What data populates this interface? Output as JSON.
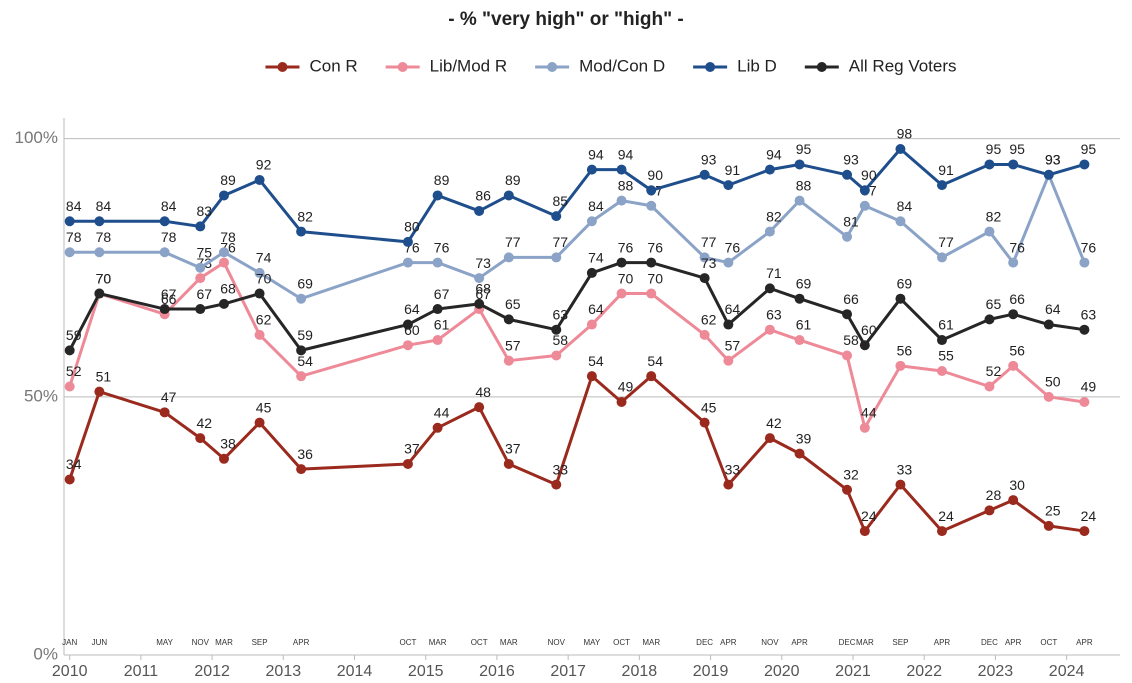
{
  "chart_data": {
    "type": "line",
    "title": "- % \"very high\" or \"high\" -",
    "x": [
      "2010-01",
      "2010-06",
      "2011-05",
      "2011-11",
      "2012-03",
      "2012-09",
      "2013-04",
      "2014-10",
      "2015-03",
      "2015-10",
      "2016-03",
      "2016-11",
      "2017-05",
      "2017-10",
      "2018-03",
      "2018-12",
      "2019-04",
      "2019-11",
      "2020-04",
      "2020-12",
      "2021-03",
      "2021-09",
      "2022-04",
      "2022-12",
      "2023-04",
      "2023-10",
      "2024-04"
    ],
    "month_labels": [
      "JAN",
      "JUN",
      "MAY",
      "NOV",
      "MAR",
      "SEP",
      "APR",
      "OCT",
      "MAR",
      "OCT",
      "MAR",
      "NOV",
      "MAY",
      "OCT",
      "MAR",
      "DEC",
      "APR",
      "NOV",
      "APR",
      "DEC",
      "MAR",
      "SEP",
      "APR",
      "DEC",
      "APR",
      "OCT",
      "APR"
    ],
    "series": [
      {
        "name": "Con R",
        "color": "#9b2a1e",
        "values": [
          34,
          51,
          47,
          42,
          38,
          45,
          36,
          37,
          44,
          48,
          37,
          33,
          54,
          49,
          54,
          45,
          33,
          42,
          39,
          32,
          24,
          33,
          24,
          28,
          30,
          25,
          24
        ]
      },
      {
        "name": "Lib/Mod R",
        "color": "#ee8a98",
        "values": [
          52,
          70,
          66,
          73,
          76,
          62,
          54,
          60,
          61,
          67,
          57,
          58,
          64,
          70,
          70,
          62,
          57,
          63,
          61,
          58,
          44,
          56,
          55,
          52,
          56,
          50,
          49
        ]
      },
      {
        "name": "Mod/Con D",
        "color": "#8ba3c7",
        "values": [
          78,
          78,
          78,
          75,
          78,
          74,
          69,
          76,
          76,
          73,
          77,
          77,
          84,
          88,
          87,
          77,
          76,
          82,
          88,
          81,
          87,
          84,
          77,
          82,
          76,
          93,
          76
        ]
      },
      {
        "name": "Lib D",
        "color": "#1f4e8c",
        "values": [
          84,
          84,
          84,
          83,
          89,
          92,
          82,
          80,
          89,
          86,
          89,
          85,
          94,
          94,
          90,
          93,
          91,
          94,
          95,
          93,
          90,
          98,
          91,
          95,
          95,
          93,
          95
        ]
      },
      {
        "name": "All Reg Voters",
        "color": "#262626",
        "values": [
          59,
          70,
          67,
          67,
          68,
          70,
          59,
          64,
          67,
          68,
          65,
          63,
          74,
          76,
          76,
          73,
          64,
          71,
          69,
          66,
          60,
          69,
          61,
          65,
          66,
          64,
          63
        ]
      }
    ],
    "xlim": [
      2009.92,
      2024.75
    ],
    "xticks": [
      2010,
      2011,
      2012,
      2013,
      2014,
      2015,
      2016,
      2017,
      2018,
      2019,
      2020,
      2021,
      2022,
      2023,
      2024
    ],
    "ylim": [
      0,
      104
    ],
    "yticks": [
      {
        "value": 0,
        "label": "0%"
      },
      {
        "value": 50,
        "label": "50%"
      },
      {
        "value": 100,
        "label": "100%"
      }
    ],
    "legend": "top"
  }
}
